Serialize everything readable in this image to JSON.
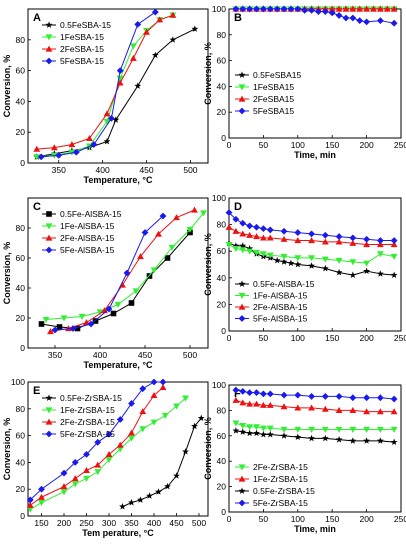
{
  "chart_data": [
    {
      "panel": "A",
      "type": "line",
      "xlabel": "Temperature, °C",
      "ylabel": "Conversion, %",
      "xlim": [
        315,
        520
      ],
      "ylim": [
        0,
        100
      ],
      "xticks": [
        350,
        400,
        450,
        500
      ],
      "yticks": [
        0,
        20,
        40,
        60,
        80
      ],
      "legend": "top-left",
      "series": [
        {
          "name": "0.5FeSBA-15",
          "color": "#000000",
          "marker": "star",
          "x": [
            325,
            345,
            365,
            385,
            405,
            415,
            440,
            460,
            480,
            505
          ],
          "y": [
            4,
            6,
            8,
            10,
            14,
            28,
            50,
            70,
            80,
            87
          ]
        },
        {
          "name": "1FeSBA-15",
          "color": "#33ee33",
          "marker": "tri-down",
          "x": [
            325,
            345,
            365,
            385,
            405,
            420,
            435,
            450,
            465,
            480
          ],
          "y": [
            4,
            5,
            7,
            11,
            27,
            55,
            76,
            86,
            93,
            96
          ]
        },
        {
          "name": "2FeSBA-15",
          "color": "#ee1111",
          "marker": "tri-up",
          "x": [
            325,
            345,
            365,
            385,
            405,
            420,
            435,
            450,
            465,
            480
          ],
          "y": [
            9,
            10,
            12,
            16,
            32,
            52,
            68,
            85,
            93,
            96
          ]
        },
        {
          "name": "5FeSBA-15",
          "color": "#1a1aee",
          "marker": "diamond",
          "x": [
            330,
            350,
            370,
            390,
            410,
            420,
            440,
            460
          ],
          "y": [
            4,
            5,
            7,
            12,
            29,
            60,
            90,
            98
          ]
        }
      ]
    },
    {
      "panel": "B",
      "type": "line",
      "xlabel": "Time, min",
      "ylabel": "Conversion, %",
      "xlim": [
        0,
        250
      ],
      "ylim": [
        0,
        100
      ],
      "xticks": [
        0,
        50,
        100,
        150,
        200,
        250
      ],
      "yticks": [
        0,
        20,
        40,
        60,
        80,
        100
      ],
      "legend": "bottom-left",
      "series": [
        {
          "name": "0.5FeSBA15",
          "color": "#000000",
          "marker": "star",
          "x": [
            10,
            20,
            30,
            40,
            50,
            60,
            70,
            80,
            90,
            100,
            110,
            120,
            130,
            140,
            150,
            160,
            170,
            180,
            190,
            200,
            210,
            220,
            230,
            240
          ],
          "y": [
            100,
            100,
            100,
            100,
            100,
            100,
            100,
            100,
            100,
            100,
            100,
            100,
            100,
            100,
            100,
            100,
            100,
            100,
            100,
            100,
            100,
            100,
            100,
            100
          ]
        },
        {
          "name": "1FeSBA15",
          "color": "#33ee33",
          "marker": "tri-down",
          "x": [
            10,
            20,
            30,
            40,
            50,
            60,
            70,
            80,
            90,
            100,
            110,
            120,
            130,
            140,
            150,
            160,
            170,
            180,
            190,
            200,
            210,
            220,
            230,
            240
          ],
          "y": [
            100,
            100,
            100,
            100,
            100,
            100,
            100,
            100,
            100,
            100,
            100,
            100,
            100,
            100,
            100,
            100,
            100,
            100,
            100,
            100,
            100,
            100,
            100,
            100
          ]
        },
        {
          "name": "2FeSBA15",
          "color": "#ee1111",
          "marker": "tri-up",
          "x": [
            10,
            20,
            30,
            40,
            50,
            60,
            70,
            80,
            90,
            100,
            110,
            120,
            130,
            140,
            150,
            160,
            170,
            180,
            190,
            200,
            210,
            220,
            230,
            240
          ],
          "y": [
            100,
            100,
            100,
            100,
            100,
            100,
            100,
            100,
            100,
            100,
            100,
            100,
            100,
            100,
            100,
            100,
            100,
            100,
            100,
            100,
            100,
            100,
            100,
            100
          ]
        },
        {
          "name": "5FeSBA15",
          "color": "#1a1aee",
          "marker": "diamond",
          "x": [
            10,
            20,
            30,
            40,
            50,
            60,
            70,
            80,
            90,
            100,
            110,
            120,
            130,
            140,
            150,
            160,
            170,
            180,
            190,
            200,
            220,
            240
          ],
          "y": [
            100,
            100,
            100,
            100,
            100,
            100,
            100,
            100,
            100,
            100,
            99,
            99,
            98,
            98,
            97,
            95,
            93,
            93,
            91,
            90,
            91,
            89
          ]
        }
      ]
    },
    {
      "panel": "C",
      "type": "line",
      "xlabel": "Temperature, °C",
      "ylabel": "Conversion, %",
      "xlim": [
        320,
        520
      ],
      "ylim": [
        0,
        100
      ],
      "xticks": [
        350,
        400,
        450,
        500
      ],
      "yticks": [
        0,
        20,
        40,
        60,
        80
      ],
      "legend": "top-left",
      "series": [
        {
          "name": "0.5Fe-AlSBA-15",
          "color": "#000000",
          "marker": "square",
          "x": [
            335,
            355,
            375,
            395,
            415,
            435,
            455,
            475,
            500
          ],
          "y": [
            16,
            14,
            13,
            18,
            23,
            30,
            48,
            60,
            77
          ]
        },
        {
          "name": "1Fe-AlSBA-15",
          "color": "#33ee33",
          "marker": "tri-down",
          "x": [
            340,
            360,
            380,
            400,
            420,
            440,
            460,
            480,
            500,
            515
          ],
          "y": [
            19,
            20,
            21,
            24,
            29,
            38,
            52,
            67,
            79,
            90
          ]
        },
        {
          "name": "2Fe-AlSBA-15",
          "color": "#ee1111",
          "marker": "tri-up",
          "x": [
            345,
            365,
            385,
            405,
            425,
            445,
            465,
            485,
            505
          ],
          "y": [
            11,
            13,
            17,
            25,
            42,
            61,
            76,
            87,
            92
          ]
        },
        {
          "name": "5Fe-AlSBA-15",
          "color": "#1a1aee",
          "marker": "diamond",
          "x": [
            350,
            370,
            390,
            410,
            430,
            450,
            470
          ],
          "y": [
            12,
            13,
            16,
            26,
            50,
            77,
            88
          ]
        }
      ]
    },
    {
      "panel": "D",
      "type": "line",
      "xlabel": "",
      "ylabel": "Conversion, %",
      "xlim": [
        0,
        250
      ],
      "ylim": [
        0,
        100
      ],
      "xticks": [
        0,
        50,
        100,
        150,
        200,
        250
      ],
      "yticks": [
        0,
        20,
        40,
        60,
        80,
        100
      ],
      "legend": "bottom-left",
      "series": [
        {
          "name": "0.5Fe-AlSBA-15",
          "color": "#000000",
          "marker": "star",
          "x": [
            0,
            10,
            20,
            30,
            40,
            50,
            60,
            70,
            80,
            90,
            100,
            120,
            140,
            160,
            180,
            200,
            220,
            240
          ],
          "y": [
            66,
            64,
            64,
            62,
            58,
            56,
            55,
            53,
            52,
            51,
            50,
            49,
            47,
            44,
            42,
            45,
            43,
            42
          ]
        },
        {
          "name": "1Fe-AlSBA-15",
          "color": "#33ee33",
          "marker": "tri-down",
          "x": [
            0,
            10,
            20,
            30,
            40,
            50,
            60,
            80,
            100,
            120,
            140,
            160,
            180,
            200,
            220,
            240
          ],
          "y": [
            65,
            62,
            61,
            60,
            59,
            58,
            57,
            56,
            55,
            55,
            54,
            53,
            52,
            51,
            58,
            56
          ]
        },
        {
          "name": "2Fe-AlSBA-15",
          "color": "#ee1111",
          "marker": "tri-up",
          "x": [
            0,
            10,
            20,
            30,
            40,
            50,
            60,
            80,
            100,
            120,
            140,
            160,
            180,
            200,
            220,
            240
          ],
          "y": [
            78,
            75,
            73,
            72,
            71,
            70,
            70,
            69,
            68,
            68,
            67,
            67,
            66,
            65,
            65,
            65
          ]
        },
        {
          "name": "5Fe-AlSBA-15",
          "color": "#1a1aee",
          "marker": "diamond",
          "x": [
            0,
            10,
            20,
            30,
            40,
            50,
            60,
            80,
            100,
            120,
            140,
            160,
            180,
            200,
            220,
            240
          ],
          "y": [
            89,
            84,
            81,
            79,
            78,
            77,
            76,
            75,
            74,
            73,
            72,
            71,
            70,
            69,
            68,
            68
          ]
        }
      ]
    },
    {
      "panel": "E",
      "type": "line",
      "xlabel": "Tem perature, °C",
      "ylabel": "Conversion, %",
      "xlim": [
        120,
        520
      ],
      "ylim": [
        0,
        100
      ],
      "xticks": [
        150,
        200,
        250,
        300,
        350,
        400,
        450,
        500
      ],
      "yticks": [
        0,
        20,
        40,
        60,
        80,
        100
      ],
      "legend": "top-left",
      "series": [
        {
          "name": "0.5Fe-ZrSBA-15",
          "color": "#000000",
          "marker": "star",
          "x": [
            330,
            350,
            370,
            390,
            410,
            430,
            450,
            470,
            490,
            505
          ],
          "y": [
            7,
            10,
            12,
            15,
            18,
            22,
            30,
            48,
            67,
            73
          ]
        },
        {
          "name": "1Fe-ZrSBA-15",
          "color": "#33ee33",
          "marker": "tri-down",
          "x": [
            125,
            150,
            200,
            225,
            250,
            275,
            300,
            325,
            350,
            375,
            400,
            425,
            450,
            470
          ],
          "y": [
            5,
            10,
            18,
            24,
            28,
            33,
            42,
            50,
            58,
            65,
            70,
            75,
            82,
            88
          ]
        },
        {
          "name": "2Fe-ZrSBA-15",
          "color": "#ee1111",
          "marker": "tri-up",
          "x": [
            125,
            150,
            200,
            225,
            250,
            275,
            300,
            325,
            350,
            375,
            400,
            420
          ],
          "y": [
            8,
            14,
            22,
            28,
            34,
            38,
            46,
            53,
            62,
            78,
            90,
            96
          ]
        },
        {
          "name": "5Fe-ZrSBA-15",
          "color": "#1a1aee",
          "marker": "diamond",
          "x": [
            125,
            150,
            200,
            225,
            250,
            275,
            300,
            325,
            350,
            375,
            400,
            420
          ],
          "y": [
            12,
            20,
            32,
            40,
            46,
            55,
            61,
            72,
            84,
            95,
            100,
            100
          ]
        }
      ]
    },
    {
      "panel": "F",
      "type": "line",
      "xlabel": "Time, min",
      "ylabel": "Conversion, %",
      "xlim": [
        0,
        250
      ],
      "ylim": [
        0,
        100
      ],
      "xticks": [
        0,
        50,
        100,
        150,
        200,
        250
      ],
      "yticks": [
        0,
        20,
        40,
        60,
        80,
        100
      ],
      "legend": "bottom-left",
      "series": [
        {
          "name": "2Fe-ZrSBA-15",
          "color": "#33ee33",
          "marker": "tri-down",
          "x": [
            10,
            20,
            30,
            40,
            50,
            60,
            80,
            100,
            120,
            140,
            160,
            180,
            200,
            220,
            240
          ],
          "y": [
            70,
            68,
            67,
            67,
            66,
            66,
            65,
            65,
            65,
            65,
            65,
            65,
            65,
            65,
            65
          ]
        },
        {
          "name": "1Fe-ZrSBA-15",
          "color": "#ee1111",
          "marker": "tri-up",
          "x": [
            10,
            20,
            30,
            40,
            50,
            60,
            80,
            100,
            120,
            140,
            160,
            180,
            200,
            220,
            240
          ],
          "y": [
            88,
            86,
            85,
            85,
            84,
            84,
            83,
            82,
            82,
            81,
            80,
            80,
            79,
            79,
            79
          ]
        },
        {
          "name": "0.5Fe-ZrSBA-15",
          "color": "#000000",
          "marker": "star",
          "x": [
            10,
            20,
            30,
            40,
            50,
            60,
            80,
            100,
            120,
            140,
            160,
            180,
            200,
            220,
            240
          ],
          "y": [
            64,
            63,
            62,
            62,
            61,
            61,
            60,
            59,
            58,
            58,
            57,
            56,
            56,
            56,
            55
          ]
        },
        {
          "name": "5Fe-ZrSBA-15",
          "color": "#1a1aee",
          "marker": "diamond",
          "x": [
            10,
            20,
            30,
            40,
            50,
            60,
            80,
            100,
            120,
            140,
            160,
            180,
            200,
            220,
            240
          ],
          "y": [
            96,
            95,
            94,
            94,
            93,
            93,
            92,
            92,
            91,
            91,
            91,
            90,
            90,
            90,
            89
          ]
        }
      ]
    }
  ]
}
